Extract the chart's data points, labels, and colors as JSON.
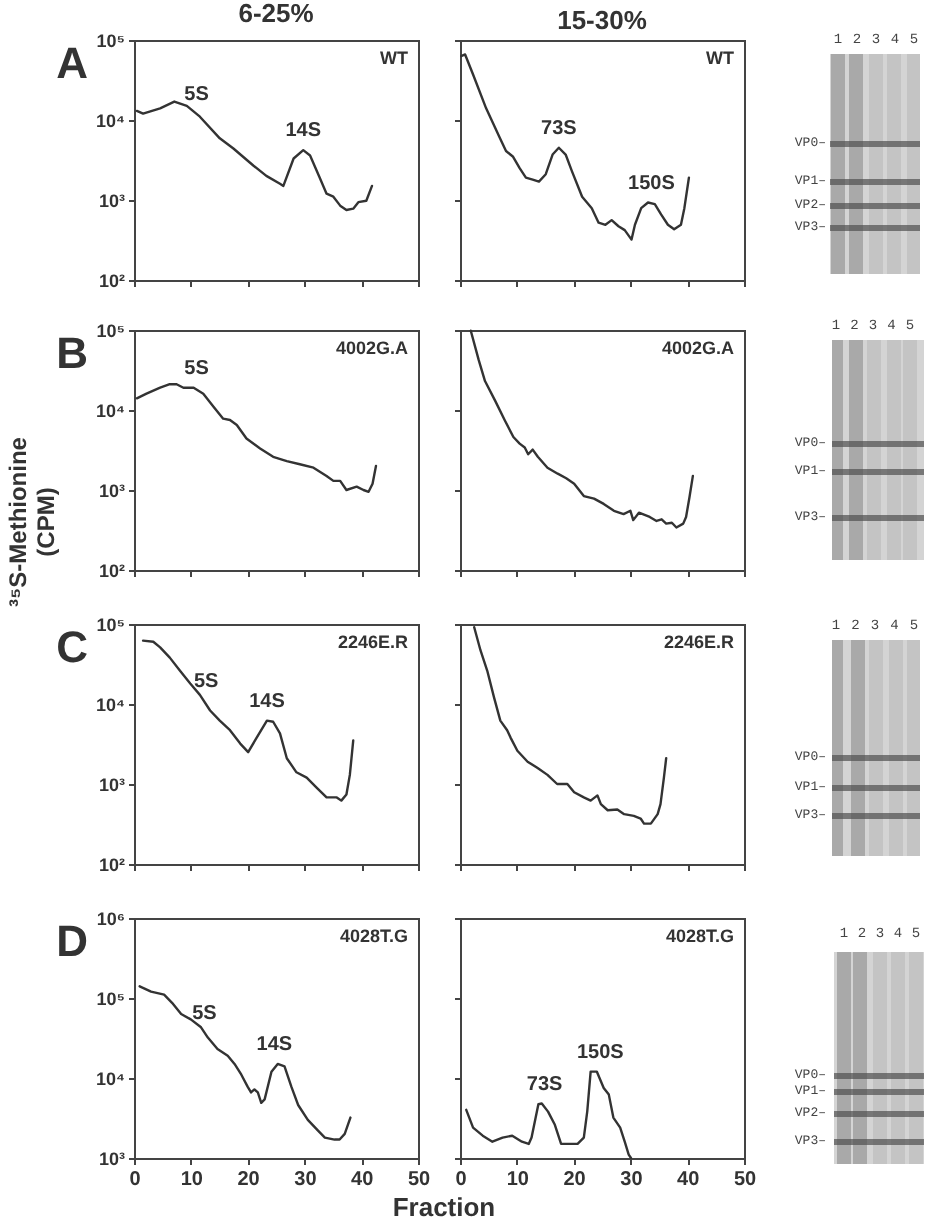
{
  "chart_data": [
    {
      "type": "line",
      "title": "6-25%",
      "x": [
        0.5,
        1.6,
        4.6,
        7.1,
        9.3,
        11.6,
        15.1,
        17.5,
        21,
        23.3,
        25.7,
        26.3,
        28.1,
        29.8,
        31,
        32.7,
        33.9,
        35.1,
        36.3,
        37.4,
        38.6,
        39.5,
        40.9,
        41.9
      ],
      "values": [
        13000,
        12000,
        14000,
        17000,
        15000,
        11000,
        5900,
        4400,
        2700,
        2000,
        1600,
        1500,
        3300,
        4200,
        3600,
        1900,
        1200,
        1100,
        850,
        750,
        780,
        940,
        980,
        1500
      ],
      "color": "#333333",
      "xlim": [
        0,
        50
      ],
      "xticks": [
        0,
        10,
        20,
        30,
        40,
        50
      ],
      "ylim": [
        100,
        100000
      ],
      "yticks": [
        {
          "value": 100,
          "label": "10²"
        },
        {
          "value": 1000,
          "label": "10³"
        },
        {
          "value": 10000,
          "label": "10⁴"
        },
        {
          "value": 100000,
          "label": "10⁵"
        }
      ],
      "log": true,
      "tick_labels": "y",
      "annotations": [
        "WT",
        "A",
        {
          "text": "5S",
          "x": 11,
          "y": 12000
        },
        {
          "text": "14S",
          "x": 29.8,
          "y": 4200
        }
      ]
    },
    {
      "type": "line",
      "title": "15-30%",
      "x": [
        0.2,
        0.9,
        2.3,
        4.6,
        7.0,
        8.1,
        9.3,
        10.5,
        11.6,
        12.8,
        13.9,
        15.1,
        16.3,
        17.4,
        18.6,
        19.7,
        21.5,
        23.2,
        24.4,
        25.6,
        26.7,
        27.9,
        29.0,
        30.2,
        30.8,
        31.9,
        33.1,
        34.3,
        35.4,
        36.6,
        37.7,
        38.9,
        39.5,
        40.3
      ],
      "values": [
        63000,
        66000,
        37000,
        14000,
        6000,
        4100,
        3500,
        2500,
        1900,
        1800,
        1700,
        2100,
        3700,
        4500,
        3700,
        2300,
        1100,
        790,
        520,
        490,
        560,
        470,
        420,
        320,
        490,
        790,
        930,
        890,
        660,
        490,
        430,
        490,
        790,
        1900
      ],
      "color": "#333333",
      "xlim": [
        0,
        50
      ],
      "xticks": [
        0,
        10,
        20,
        30,
        40,
        50
      ],
      "ylim": [
        100,
        100000
      ],
      "yticks": [
        100,
        1000,
        10000,
        100000
      ],
      "log": true,
      "tick_labels": false,
      "annotations": [
        "WT",
        {
          "text": "73S",
          "x": 17.4,
          "y": 4500
        },
        {
          "text": "150S",
          "x": 33.7,
          "y": 920
        }
      ]
    },
    {
      "type": "other",
      "annotations": [
        "1 2 3 4 5",
        "VP0–",
        "VP1–",
        "VP2–",
        "VP3–"
      ]
    },
    {
      "type": "line",
      "ylabel": "³⁵S-Methionine (CPM)",
      "x": [
        0.5,
        2.2,
        4.6,
        6.3,
        7.5,
        8.7,
        10.5,
        12.2,
        14.0,
        15.7,
        16.9,
        18.1,
        19.8,
        22.2,
        24.5,
        26.9,
        29.2,
        31.6,
        33.9,
        35.1,
        36.3,
        37.4,
        39.2,
        40.4,
        41.3,
        42.0,
        42.6
      ],
      "values": [
        14000,
        16000,
        19000,
        21000,
        21000,
        19000,
        19000,
        16000,
        11000,
        7800,
        7500,
        6500,
        4400,
        3300,
        2600,
        2300,
        2100,
        1900,
        1500,
        1300,
        1300,
        1000,
        1100,
        1000,
        950,
        1200,
        2000
      ],
      "color": "#333333",
      "xlim": [
        0,
        50
      ],
      "xticks": [
        0,
        10,
        20,
        30,
        40,
        50
      ],
      "ylim": [
        100,
        100000
      ],
      "yticks": [
        {
          "value": 100,
          "label": "10²"
        },
        {
          "value": 1000,
          "label": "10³"
        },
        {
          "value": 10000,
          "label": "10⁴"
        },
        {
          "value": 100000,
          "label": "10⁵"
        }
      ],
      "log": true,
      "tick_labels": "y",
      "annotations": [
        "4002G.A",
        "B",
        {
          "text": "5S",
          "x": 11,
          "y": 19000
        }
      ]
    },
    {
      "type": "line",
      "x": [
        1.9,
        3.3,
        4.4,
        6.2,
        7.9,
        9.4,
        10.5,
        11.4,
        12.0,
        12.8,
        13.7,
        15.4,
        17.2,
        18.7,
        20.1,
        21.8,
        23.6,
        25.3,
        27.1,
        28.8,
        30.0,
        30.5,
        31.5,
        33.4,
        34.6,
        35.5,
        36.3,
        37.3,
        38.1,
        39.3,
        39.8,
        40.4,
        41.0
      ],
      "values": [
        98000,
        42000,
        23000,
        13000,
        7400,
        4600,
        3800,
        3400,
        2800,
        3200,
        2600,
        1900,
        1600,
        1400,
        1200,
        840,
        780,
        670,
        550,
        500,
        550,
        420,
        520,
        460,
        410,
        430,
        380,
        390,
        340,
        380,
        460,
        810,
        1500
      ],
      "color": "#333333",
      "xlim": [
        0,
        50
      ],
      "xticks": [
        0,
        10,
        20,
        30,
        40,
        50
      ],
      "ylim": [
        100,
        100000
      ],
      "yticks": [
        100,
        1000,
        10000,
        100000
      ],
      "log": true,
      "tick_labels": false,
      "annotations": [
        "4002G.A"
      ]
    },
    {
      "type": "other",
      "annotations": [
        "1 2 3 4 5",
        "VP0–",
        "VP1–",
        "VP3–"
      ]
    },
    {
      "type": "line",
      "x": [
        1.6,
        3.4,
        4.6,
        6.3,
        8.1,
        9.9,
        11.6,
        13.4,
        15.1,
        16.9,
        18.7,
        20.1,
        21.6,
        23.4,
        24.5,
        25.7,
        26.9,
        28.6,
        30.4,
        32.1,
        33.9,
        35.7,
        36.5,
        37.4,
        38.0,
        38.6
      ],
      "values": [
        62000,
        60000,
        51000,
        38000,
        26000,
        18000,
        13000,
        8300,
        6200,
        4700,
        3200,
        2500,
        3800,
        6200,
        6000,
        4300,
        2100,
        1400,
        1200,
        910,
        680,
        680,
        620,
        740,
        1300,
        3500
      ],
      "color": "#333333",
      "xlim": [
        0,
        50
      ],
      "xticks": [
        0,
        10,
        20,
        30,
        40,
        50
      ],
      "ylim": [
        100,
        100000
      ],
      "yticks": [
        {
          "value": 100,
          "label": "10²"
        },
        {
          "value": 1000,
          "label": "10³"
        },
        {
          "value": 10000,
          "label": "10⁴"
        },
        {
          "value": 100000,
          "label": "10⁵"
        }
      ],
      "log": true,
      "tick_labels": "y",
      "annotations": [
        "2246E.R",
        "C",
        {
          "text": "5S",
          "x": 12.7,
          "y": 11000
        },
        {
          "text": "14S",
          "x": 23.4,
          "y": 6200
        }
      ]
    },
    {
      "type": "line",
      "x": [
        2.5,
        3.6,
        4.8,
        6.0,
        7.1,
        8.3,
        8.9,
        10.1,
        11.9,
        13.6,
        15.4,
        17.1,
        18.9,
        20.1,
        21.8,
        23.0,
        24.2,
        24.8,
        26.0,
        27.7,
        28.9,
        30.6,
        31.8,
        32.4,
        33.6,
        34.8,
        35.3,
        35.9,
        36.3
      ],
      "values": [
        91000,
        47000,
        26000,
        12000,
        6200,
        4700,
        3800,
        2600,
        1900,
        1600,
        1300,
        1000,
        1000,
        790,
        680,
        620,
        720,
        560,
        470,
        480,
        420,
        400,
        370,
        320,
        320,
        420,
        560,
        1200,
        2100
      ],
      "color": "#333333",
      "xlim": [
        0,
        50
      ],
      "xticks": [
        0,
        10,
        20,
        30,
        40,
        50
      ],
      "ylim": [
        100,
        100000
      ],
      "yticks": [
        100,
        1000,
        10000,
        100000
      ],
      "log": true,
      "tick_labels": false,
      "annotations": [
        "2246E.R"
      ]
    },
    {
      "type": "other",
      "annotations": [
        "1 2 3 4 5",
        "VP0–",
        "VP1–",
        "VP3–"
      ]
    },
    {
      "type": "line",
      "xlabel": "Fraction",
      "x": [
        1.0,
        3.0,
        5.3,
        6.7,
        8.3,
        10.0,
        11.8,
        13.0,
        14.7,
        16.5,
        17.7,
        18.9,
        20.0,
        20.6,
        21.2,
        21.8,
        22.4,
        23.0,
        24.2,
        25.3,
        26.5,
        27.7,
        28.9,
        30.6,
        32.4,
        33.6,
        35.3,
        36.2,
        37.1,
        38.1
      ],
      "values": [
        140000,
        120000,
        110000,
        87000,
        63000,
        54000,
        43000,
        32000,
        23000,
        19000,
        15000,
        11000,
        7800,
        6600,
        7200,
        6600,
        4900,
        5400,
        12000,
        15000,
        14000,
        7800,
        4600,
        3000,
        2200,
        1800,
        1700,
        1700,
        2000,
        3200
      ],
      "color": "#333333",
      "xlim": [
        0,
        50
      ],
      "xticks": [
        0,
        10,
        20,
        30,
        40,
        50
      ],
      "ylim": [
        1000,
        1000000
      ],
      "yticks": [
        {
          "value": 1000,
          "label": "10³"
        },
        {
          "value": 10000,
          "label": "10⁴"
        },
        {
          "value": 100000,
          "label": "10⁵"
        },
        {
          "value": 1000000,
          "label": "10⁶"
        }
      ],
      "log": true,
      "annotations": [
        "4028T.G",
        "D",
        {
          "text": "5S",
          "x": 12.4,
          "y": 36000
        },
        {
          "text": "14S",
          "x": 24.7,
          "y": 15000
        }
      ]
    },
    {
      "type": "line",
      "x": [
        1.1,
        2.3,
        4.0,
        5.7,
        7.5,
        9.2,
        10.9,
        12.1,
        12.6,
        13.8,
        14.4,
        15.5,
        16.7,
        17.8,
        19.0,
        20.7,
        21.8,
        22.4,
        23.0,
        24.1,
        25.3,
        26.2,
        27.0,
        28.2,
        29.0,
        29.7,
        30.1
      ],
      "values": [
        4000,
        2400,
        1900,
        1600,
        1800,
        1900,
        1600,
        1500,
        1800,
        4700,
        4800,
        3800,
        2600,
        1500,
        1500,
        1500,
        1800,
        3800,
        12000,
        12000,
        7500,
        6200,
        3200,
        2400,
        1600,
        1100,
        1000
      ],
      "color": "#333333",
      "xlim": [
        0,
        50
      ],
      "xticks": [
        0,
        10,
        20,
        30,
        40,
        50
      ],
      "ylim": [
        1000,
        1000000
      ],
      "yticks": [
        1000,
        10000,
        100000,
        1000000
      ],
      "log": true,
      "tick_labels": "x",
      "annotations": [
        "4028T.G",
        {
          "text": "73S",
          "x": 14.9,
          "y": 4800
        },
        {
          "text": "150S",
          "x": 24.7,
          "y": 12000
        }
      ]
    },
    {
      "type": "other",
      "annotations": [
        "1 2 3 4 5",
        "VP0–",
        "VP1–",
        "VP2–",
        "VP3–"
      ]
    }
  ]
}
